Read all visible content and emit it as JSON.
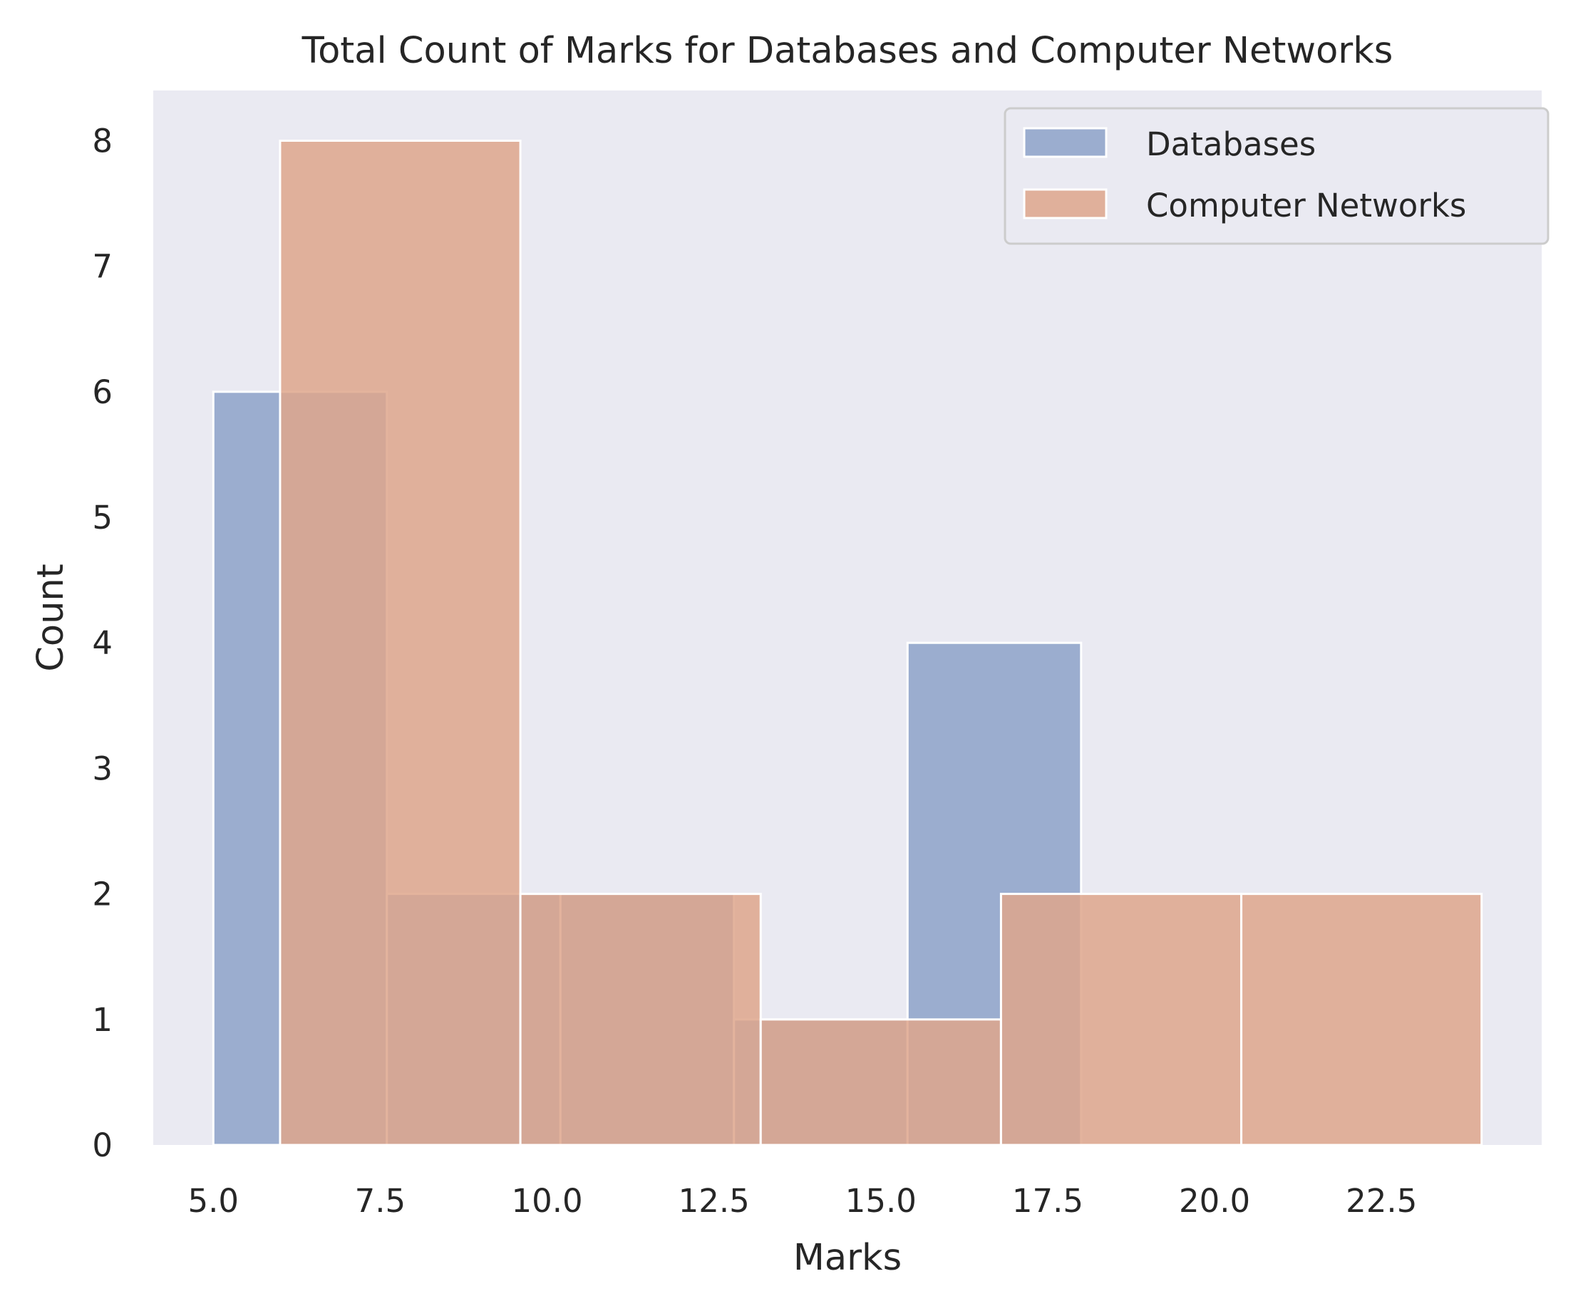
{
  "chart_data": {
    "type": "bar",
    "title": "Total Count of Marks for Databases and Computer Networks",
    "xlabel": "Marks",
    "ylabel": "Count",
    "xlim": [
      4.1,
      24.9
    ],
    "ylim": [
      0,
      8.4
    ],
    "xticks": [
      "5.0",
      "7.5",
      "10.0",
      "12.5",
      "15.0",
      "17.5",
      "20.0",
      "22.5"
    ],
    "xtick_values": [
      5.0,
      7.5,
      10.0,
      12.5,
      15.0,
      17.5,
      20.0,
      22.5
    ],
    "yticks": [
      "0",
      "1",
      "2",
      "3",
      "4",
      "5",
      "6",
      "7",
      "8"
    ],
    "ytick_values": [
      0,
      1,
      2,
      3,
      4,
      5,
      6,
      7,
      8
    ],
    "grid": false,
    "legend_position": "top-right",
    "background": "#eaeaf2",
    "series": [
      {
        "name": "Databases",
        "color": "#8da2c9",
        "bins": [
          {
            "x0": 5.0,
            "x1": 7.6,
            "count": 6
          },
          {
            "x0": 7.6,
            "x1": 10.2,
            "count": 2
          },
          {
            "x0": 10.2,
            "x1": 12.8,
            "count": 2
          },
          {
            "x0": 12.8,
            "x1": 15.4,
            "count": 1
          },
          {
            "x0": 15.4,
            "x1": 18.0,
            "count": 4
          },
          {
            "x0": 18.0,
            "x1": 20.6,
            "count": 0
          }
        ]
      },
      {
        "name": "Computer Networks",
        "color": "#dea68c",
        "bins": [
          {
            "x0": 6.0,
            "x1": 9.6,
            "count": 8
          },
          {
            "x0": 9.6,
            "x1": 13.2,
            "count": 2
          },
          {
            "x0": 13.2,
            "x1": 16.8,
            "count": 1
          },
          {
            "x0": 16.8,
            "x1": 20.4,
            "count": 2
          },
          {
            "x0": 20.4,
            "x1": 24.0,
            "count": 2
          }
        ]
      }
    ]
  }
}
